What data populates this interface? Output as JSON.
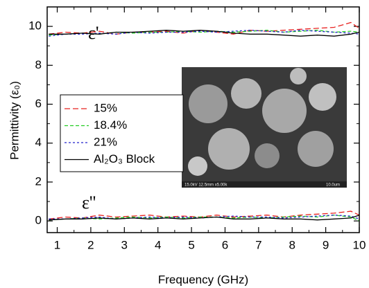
{
  "chart_data": {
    "type": "line",
    "x_label": "Frequency (GHz)",
    "y_label": "Permittivity (ε₀)",
    "label_real": "ε'",
    "label_imag": "ε''",
    "inset_caption": "15.0kV 12.5mm x5.00k",
    "inset_scale": "10.0um",
    "xlim": [
      0.7,
      10
    ],
    "ylim": [
      -0.6,
      11
    ],
    "xticks": [
      1,
      2,
      3,
      4,
      5,
      6,
      7,
      8,
      9,
      10
    ],
    "yticks": [
      0,
      2,
      4,
      6,
      8,
      10
    ],
    "x": [
      0.75,
      1.25,
      1.75,
      2.25,
      2.75,
      3.25,
      3.75,
      4.25,
      4.75,
      5.25,
      5.75,
      6.25,
      6.75,
      7.25,
      7.75,
      8.25,
      8.75,
      9.25,
      9.75,
      10
    ],
    "series": [
      {
        "name": "15%",
        "color": "#e8201e",
        "dash": "8,4",
        "values": [
          9.6,
          9.7,
          9.65,
          9.75,
          9.6,
          9.7,
          9.7,
          9.75,
          9.65,
          9.8,
          9.7,
          9.6,
          9.8,
          9.75,
          9.8,
          9.85,
          9.9,
          9.95,
          10.2,
          9.9
        ],
        "values_imag": [
          0.1,
          0.2,
          0.15,
          0.3,
          0.2,
          0.25,
          0.3,
          0.2,
          0.25,
          0.2,
          0.3,
          0.2,
          0.25,
          0.3,
          0.2,
          0.3,
          0.35,
          0.4,
          0.5,
          0.3
        ]
      },
      {
        "name": "18.4%",
        "color": "#22cc22",
        "dash": "5,3",
        "values": [
          9.55,
          9.6,
          9.65,
          9.6,
          9.7,
          9.65,
          9.7,
          9.7,
          9.75,
          9.7,
          9.75,
          9.7,
          9.75,
          9.8,
          9.7,
          9.75,
          9.8,
          9.7,
          9.75,
          9.7
        ],
        "values_imag": [
          0.05,
          0.1,
          0.15,
          0.1,
          0.15,
          0.2,
          0.15,
          0.2,
          0.15,
          0.2,
          0.2,
          0.15,
          0.2,
          0.15,
          0.2,
          0.25,
          0.2,
          0.3,
          0.2,
          0
        ]
      },
      {
        "name": "21%",
        "color": "#2222cc",
        "dash": "3,3",
        "values": [
          9.5,
          9.6,
          9.6,
          9.65,
          9.6,
          9.7,
          9.65,
          9.7,
          9.7,
          9.75,
          9.7,
          9.75,
          9.8,
          9.75,
          9.7,
          9.8,
          9.75,
          9.7,
          9.65,
          9.6
        ],
        "values_imag": [
          0.1,
          0.1,
          0.15,
          0.2,
          0.1,
          0.15,
          0.2,
          0.15,
          0.2,
          0.15,
          0.2,
          0.25,
          0.2,
          0.2,
          0.15,
          0.2,
          0.25,
          0.3,
          0.25,
          0.1
        ]
      },
      {
        "name": "Al₂O₃ Block",
        "color": "#000000",
        "dash": "none",
        "values": [
          9.6,
          9.6,
          9.65,
          9.6,
          9.7,
          9.7,
          9.75,
          9.8,
          9.75,
          9.8,
          9.75,
          9.65,
          9.6,
          9.6,
          9.55,
          9.5,
          9.55,
          9.5,
          9.6,
          9.7
        ],
        "values_imag": [
          0.05,
          0.1,
          0.1,
          0.15,
          0.1,
          0.15,
          0.1,
          0.15,
          0.1,
          0.15,
          0.2,
          0.1,
          0.1,
          0.15,
          0.1,
          0.1,
          0.05,
          0.1,
          0.15,
          0.3
        ]
      }
    ]
  }
}
